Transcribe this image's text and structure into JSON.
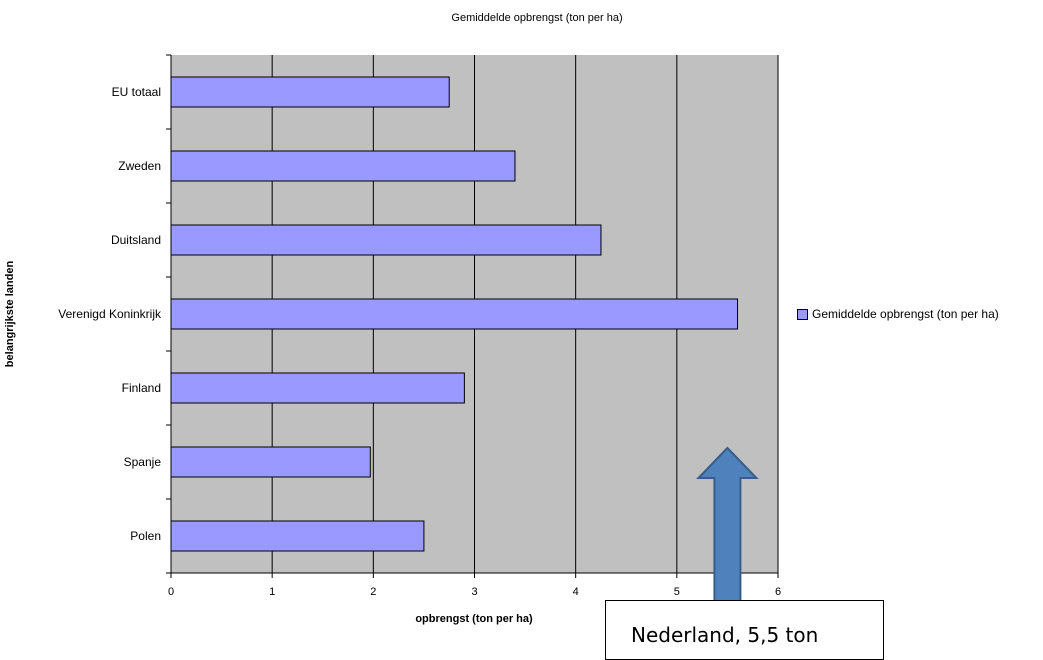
{
  "chart_data": {
    "type": "bar",
    "orientation": "horizontal",
    "title": "Gemiddelde opbrengst (ton per ha)",
    "xlabel": "opbrengst (ton per ha)",
    "ylabel": "belangrijkste landen",
    "categories": [
      "EU totaal",
      "Zweden",
      "Duitsland",
      "Verenigd Koninkrijk",
      "Finland",
      "Spanje",
      "Polen"
    ],
    "series": [
      {
        "name": "Gemiddelde opbrengst (ton per ha)",
        "values": [
          2.75,
          3.4,
          4.25,
          5.6,
          2.9,
          1.97,
          2.5
        ]
      }
    ],
    "xlim": [
      0,
      6
    ],
    "xticks": [
      "0",
      "1",
      "2",
      "3",
      "4",
      "5",
      "6"
    ],
    "grid": true,
    "legend_position": "right",
    "colors": {
      "bar": "#9999ff",
      "plot_background": "#c0c0c0"
    }
  },
  "annotation": {
    "text": "Nederland, 5,5 ton",
    "arrow_value": 5.5,
    "arrow_color": "#4f81bd"
  }
}
